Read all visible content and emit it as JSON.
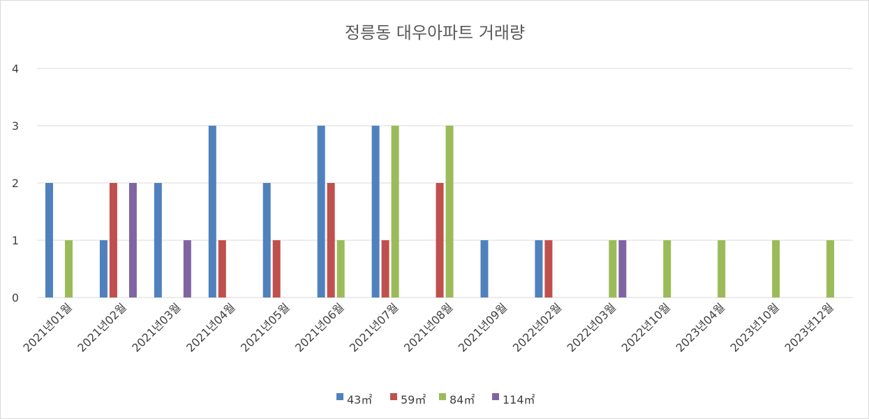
{
  "chart_data": {
    "type": "bar",
    "title": "정릉동 대우아파트 거래량",
    "xlabel": "",
    "ylabel": "",
    "ylim": [
      0,
      4
    ],
    "yticks": [
      0,
      1,
      2,
      3,
      4
    ],
    "grid": true,
    "legend_position": "bottom",
    "categories": [
      "2021년01월",
      "2021년02월",
      "2021년03월",
      "2021년04월",
      "2021년05월",
      "2021년06월",
      "2021년07월",
      "2021년08월",
      "2021년09월",
      "2022년02월",
      "2022년03월",
      "2022년10월",
      "2023년04월",
      "2023년10월",
      "2023년12월"
    ],
    "series": [
      {
        "name": "43㎡",
        "color": "#4f81bd",
        "values": [
          2,
          1,
          2,
          3,
          2,
          3,
          3,
          0,
          1,
          1,
          0,
          0,
          0,
          0,
          0
        ]
      },
      {
        "name": "59㎡",
        "color": "#c0504d",
        "values": [
          0,
          2,
          0,
          1,
          1,
          2,
          1,
          2,
          0,
          1,
          0,
          0,
          0,
          0,
          0
        ]
      },
      {
        "name": "84㎡",
        "color": "#9bbb59",
        "values": [
          1,
          0,
          0,
          0,
          0,
          1,
          3,
          3,
          0,
          0,
          1,
          1,
          1,
          1,
          1
        ]
      },
      {
        "name": "114㎡",
        "color": "#8064a2",
        "values": [
          0,
          2,
          1,
          0,
          0,
          0,
          0,
          0,
          0,
          0,
          1,
          0,
          0,
          0,
          0
        ]
      }
    ]
  }
}
